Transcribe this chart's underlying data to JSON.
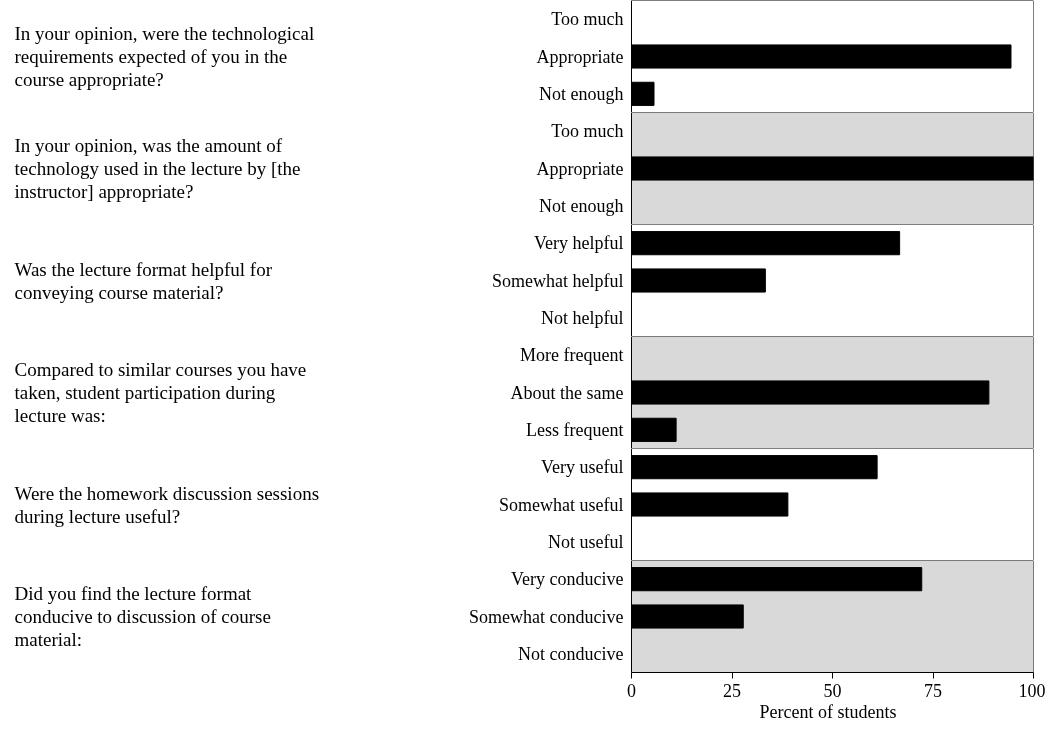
{
  "chart_data": [
    {
      "type": "bar",
      "orientation": "horizontal",
      "ylabel": "In your opinion, were the technological requirements expected of you in the course appropriate?",
      "categories": [
        "Too much",
        "Appropriate",
        "Not enough"
      ],
      "values": [
        0,
        94.4,
        5.6
      ],
      "color": "#000000",
      "xlim": [
        0,
        100
      ],
      "tick_labels": "y"
    },
    {
      "type": "bar",
      "orientation": "horizontal",
      "ylabel": "In your opinion, was the amount of technology used in the lecture by [the instructor] appropriate?",
      "categories": [
        "Too much",
        "Appropriate",
        "Not enough"
      ],
      "values": [
        0,
        100,
        0
      ],
      "color": "#000000",
      "xlim": [
        0,
        100
      ],
      "tick_labels": "y",
      "bands": [
        {
          "axis": "x",
          "from": 0,
          "to": 100,
          "color": "#d9d9d9"
        }
      ]
    },
    {
      "type": "bar",
      "orientation": "horizontal",
      "ylabel": "Was the lecture format helpful for conveying course material?",
      "categories": [
        "Very helpful",
        "Somewhat helpful",
        "Not helpful"
      ],
      "values": [
        66.7,
        33.3,
        0
      ],
      "color": "#000000",
      "xlim": [
        0,
        100
      ],
      "tick_labels": "y"
    },
    {
      "type": "bar",
      "orientation": "horizontal",
      "ylabel": "Compared to similar courses you have taken, student participation during lecture was:",
      "categories": [
        "More frequent",
        "About the same",
        "Less frequent"
      ],
      "values": [
        0,
        88.9,
        11.1
      ],
      "color": "#000000",
      "xlim": [
        0,
        100
      ],
      "tick_labels": "y",
      "bands": [
        {
          "axis": "x",
          "from": 0,
          "to": 100,
          "color": "#d9d9d9"
        }
      ]
    },
    {
      "type": "bar",
      "orientation": "horizontal",
      "ylabel": "Were the homework discussion sessions during lecture useful?",
      "categories": [
        "Very useful",
        "Somewhat useful",
        "Not useful"
      ],
      "values": [
        61.1,
        38.9,
        0
      ],
      "color": "#000000",
      "xlim": [
        0,
        100
      ],
      "tick_labels": "y"
    },
    {
      "type": "bar",
      "orientation": "horizontal",
      "ylabel": "Did you find the lecture format conducive to discussion of course material:",
      "categories": [
        "Very conducive",
        "Somewhat conducive",
        "Not conducive"
      ],
      "values": [
        72.2,
        27.8,
        0
      ],
      "color": "#000000",
      "xlim": [
        0,
        100
      ],
      "xticks": [
        0,
        25,
        50,
        75,
        100
      ],
      "xlabel": "Percent of students",
      "bands": [
        {
          "axis": "x",
          "from": 0,
          "to": 100,
          "color": "#d9d9d9"
        }
      ]
    }
  ]
}
